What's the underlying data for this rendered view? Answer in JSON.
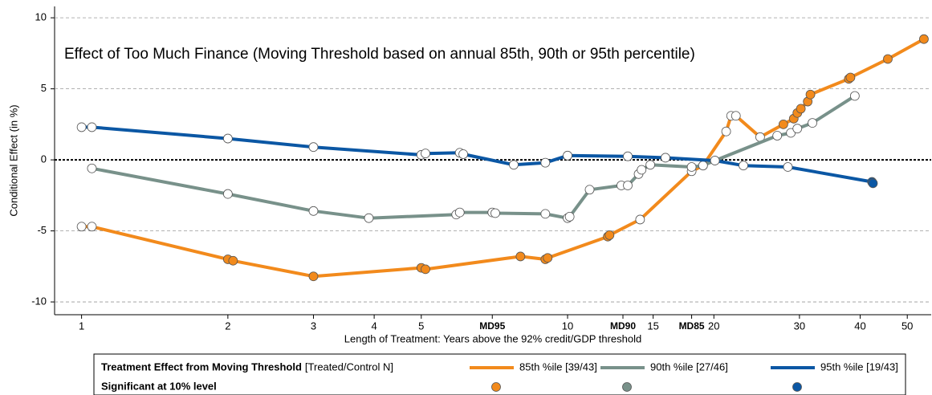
{
  "chart_data": {
    "type": "line",
    "title": "Effect of Too Much Finance (Moving Threshold based on annual 85th, 90th or 95th percentile)",
    "x_label": "Length of Treatment: Years above the 92% credit/GDP threshold",
    "y_label": "Conditional Effect (in %)",
    "x_log": true,
    "xlim": [
      0.88,
      56
    ],
    "xticks": [
      1,
      2,
      3,
      4,
      5,
      {
        "value": 7,
        "label": "MD95"
      },
      10,
      {
        "value": 13,
        "label": "MD90"
      },
      15,
      {
        "value": 18,
        "label": "MD85"
      },
      20,
      30,
      40,
      50
    ],
    "ylim": [
      -10.9,
      10.8
    ],
    "yticks": [
      -10,
      -5,
      0,
      5,
      10
    ],
    "grid": true,
    "zero_line": true,
    "legend_title": "Treatment Effect from Moving Threshold",
    "legend_subtitle": "[Treated/Control N]",
    "significance_label": "Significant at 10% level",
    "series": [
      {
        "name": "85th %ile [39/43]",
        "color": "#f28a1c",
        "x": [
          1.0,
          1.05,
          2.0,
          2.05,
          3.0,
          5.0,
          5.1,
          8.0,
          9.0,
          9.1,
          12.1,
          12.2,
          14.1,
          18.0,
          19.0,
          21.2,
          21.7,
          22.2,
          24.9,
          27.8,
          29.2,
          29.7,
          30.2,
          31.2,
          31.6,
          37.9,
          38.2,
          45.6,
          54.1
        ],
        "values": [
          -4.7,
          -4.7,
          -7.0,
          -7.1,
          -8.2,
          -7.6,
          -7.7,
          -6.8,
          -7.0,
          -6.9,
          -5.4,
          -5.3,
          -4.2,
          -0.8,
          -0.4,
          2.0,
          3.1,
          3.1,
          1.6,
          2.5,
          2.9,
          3.3,
          3.6,
          4.1,
          4.6,
          5.7,
          5.8,
          7.1,
          8.5
        ],
        "significant": [
          false,
          false,
          true,
          true,
          true,
          true,
          true,
          true,
          true,
          true,
          true,
          true,
          false,
          false,
          false,
          false,
          false,
          false,
          false,
          true,
          true,
          true,
          true,
          true,
          true,
          true,
          true,
          true,
          true
        ]
      },
      {
        "name": "90th %ile [27/46]",
        "color": "#78918a",
        "x": [
          1.05,
          2.0,
          3.0,
          3.9,
          5.9,
          6.0,
          7.0,
          7.1,
          9.0,
          10.0,
          10.1,
          11.1,
          12.9,
          13.3,
          14.0,
          14.2,
          14.8,
          18.0,
          19.0,
          20.1,
          27.0,
          28.8,
          29.7,
          31.9,
          39.0
        ],
        "values": [
          -0.6,
          -2.4,
          -3.6,
          -4.1,
          -3.85,
          -3.7,
          -3.7,
          -3.75,
          -3.8,
          -4.1,
          -4.0,
          -2.1,
          -1.8,
          -1.8,
          -1.0,
          -0.7,
          -0.35,
          -0.5,
          -0.4,
          -0.05,
          1.7,
          1.9,
          2.2,
          2.6,
          4.5
        ],
        "significant": [
          false,
          false,
          false,
          false,
          false,
          false,
          false,
          false,
          false,
          false,
          false,
          false,
          false,
          false,
          false,
          false,
          false,
          false,
          false,
          false,
          false,
          false,
          false,
          false,
          false
        ]
      },
      {
        "name": "95th %ile [19/43]",
        "color": "#0b57a4",
        "x": [
          1.0,
          1.05,
          2.0,
          3.0,
          5.0,
          5.1,
          6.0,
          6.1,
          7.75,
          9.0,
          10.0,
          13.3,
          15.9,
          20.1,
          23.0,
          28.4,
          42.3,
          42.5
        ],
        "values": [
          2.3,
          2.3,
          1.5,
          0.9,
          0.35,
          0.45,
          0.5,
          0.4,
          -0.35,
          -0.2,
          0.3,
          0.25,
          0.15,
          -0.05,
          -0.4,
          -0.5,
          -1.55,
          -1.65
        ],
        "significant": [
          false,
          false,
          false,
          false,
          false,
          false,
          false,
          false,
          false,
          false,
          false,
          false,
          false,
          false,
          false,
          false,
          true,
          true
        ]
      }
    ]
  }
}
